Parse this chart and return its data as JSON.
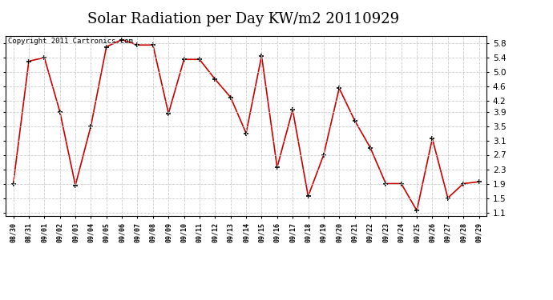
{
  "title": "Solar Radiation per Day KW/m2 20110929",
  "copyright_text": "Copyright 2011 Cartronics.com",
  "labels": [
    "08/30",
    "08/31",
    "09/01",
    "09/02",
    "09/03",
    "09/04",
    "09/05",
    "09/06",
    "09/07",
    "09/08",
    "09/09",
    "09/10",
    "09/11",
    "09/12",
    "09/13",
    "09/14",
    "09/15",
    "09/16",
    "09/17",
    "09/18",
    "09/19",
    "09/20",
    "09/21",
    "09/22",
    "09/23",
    "09/24",
    "09/25",
    "09/26",
    "09/27",
    "09/28",
    "09/29"
  ],
  "values": [
    1.9,
    5.3,
    5.4,
    3.9,
    1.85,
    3.5,
    5.7,
    5.9,
    5.75,
    5.75,
    3.85,
    5.35,
    5.35,
    4.8,
    4.3,
    3.3,
    5.45,
    2.35,
    3.95,
    1.55,
    2.7,
    4.55,
    3.65,
    2.9,
    1.9,
    1.9,
    1.15,
    3.15,
    1.5,
    1.9,
    1.95
  ],
  "line_color": "#cc0000",
  "marker": "+",
  "marker_color": "#000000",
  "ylim": [
    1.0,
    6.0
  ],
  "yticks": [
    1.1,
    1.5,
    1.9,
    2.3,
    2.7,
    3.1,
    3.5,
    3.9,
    4.2,
    4.6,
    5.0,
    5.4,
    5.8
  ],
  "grid_color": "#cccccc",
  "bg_color": "#ffffff",
  "title_fontsize": 13,
  "copyright_fontsize": 6.5
}
